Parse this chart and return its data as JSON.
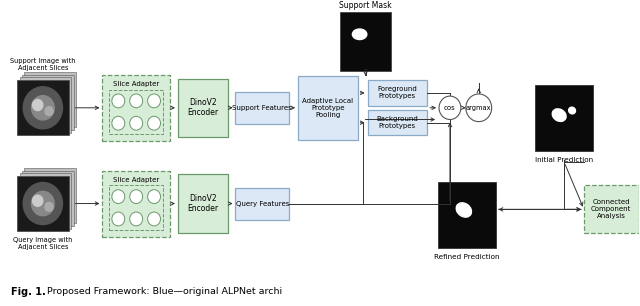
{
  "fig_width": 6.4,
  "fig_height": 3.06,
  "support_label": "Support Image with\nAdjacent Slices",
  "query_label": "Query Image with\nAdjacent Slices",
  "support_mask_label": "Support Mask",
  "initial_pred_label": "Initial Prediction",
  "refined_pred_label": "Refined Prediction",
  "slice_adapter_label": "Slice Adapter",
  "dino_encoder_label": "DinoV2\nEncoder",
  "support_features_label": "Support Features",
  "query_features_label": "Query Features",
  "adaptive_pool_label": "Adaptive Local\nPrototype\nPooling",
  "fg_proto_label": "Foreground\nPrototypes",
  "bg_proto_label": "Background\nPrototypes",
  "cos_label": "cos",
  "argmax_label": "argmax",
  "cca_label": "Connected\nComponent\nAnalysis",
  "green_fill": "#d8edd8",
  "green_edge": "#6a9a6a",
  "blue_fill": "#dce8f5",
  "blue_edge": "#8aaac8",
  "dashed_green_fill": "#d8edd8",
  "dashed_green_edge": "#6a9a6a",
  "arrow_color": "#333333",
  "caption_bold": "Fig. 1.",
  "caption_rest": "  Proposed Framework: Blue—original ALPNet archi"
}
